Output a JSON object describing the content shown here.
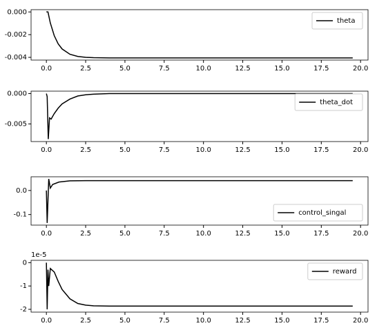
{
  "chart_data": [
    {
      "type": "line",
      "legend": "upper right",
      "xlim": [
        -0.975,
        20.475
      ],
      "ylim": [
        -0.00424,
        0.0002
      ],
      "xticks": [
        {
          "value": 0,
          "label": "0.0"
        },
        2.5,
        {
          "value": 5,
          "label": "5.0"
        },
        7.5,
        {
          "value": 10,
          "label": "10.0"
        },
        12.5,
        {
          "value": 15,
          "label": "15.0"
        },
        17.5,
        {
          "value": 20,
          "label": "20.0"
        }
      ],
      "yticks": [
        {
          "value": 0,
          "label": "0.000"
        },
        {
          "value": -0.002,
          "label": "-0.002"
        },
        {
          "value": -0.004,
          "label": "-0.004"
        }
      ],
      "series": [
        {
          "name": "theta",
          "color": "#000000",
          "x": [
            0,
            0.1,
            0.25,
            0.5,
            0.75,
            1,
            1.5,
            2,
            2.5,
            3,
            4,
            5,
            10,
            15,
            19.5
          ],
          "values": [
            0,
            0,
            -0.00097,
            -0.00209,
            -0.00281,
            -0.00326,
            -0.00373,
            -0.00392,
            -0.004,
            -0.00403,
            -0.00405,
            -0.00405,
            -0.00405,
            -0.00405,
            -0.00405
          ]
        }
      ]
    },
    {
      "type": "line",
      "legend": "upper right",
      "xlim": [
        -0.975,
        20.475
      ],
      "ylim": [
        -0.0079,
        0.0004
      ],
      "xticks": [
        {
          "value": 0,
          "label": "0.0"
        },
        2.5,
        {
          "value": 5,
          "label": "5.0"
        },
        7.5,
        {
          "value": 10,
          "label": "10.0"
        },
        12.5,
        {
          "value": 15,
          "label": "15.0"
        },
        17.5,
        {
          "value": 20,
          "label": "20.0"
        }
      ],
      "yticks": [
        {
          "value": 0,
          "label": "0.000"
        },
        {
          "value": -0.005,
          "label": "-0.005"
        }
      ],
      "series": [
        {
          "name": "theta_dot",
          "color": "#000000",
          "x": [
            0,
            0.05,
            0.12,
            0.2,
            0.3,
            0.5,
            0.75,
            1,
            1.5,
            2,
            2.5,
            3,
            4,
            5,
            10,
            15,
            19.5
          ],
          "values": [
            0,
            -0.0005,
            -0.0075,
            -0.004,
            -0.0042,
            -0.0033,
            -0.0024,
            -0.0017,
            -0.0009,
            -0.0004,
            -0.0002,
            -0.0001,
            0,
            0,
            0,
            0,
            0
          ]
        }
      ]
    },
    {
      "type": "line",
      "legend": "lower right",
      "xlim": [
        -0.975,
        20.475
      ],
      "ylim": [
        -0.144,
        0.057
      ],
      "xticks": [
        {
          "value": 0,
          "label": "0.0"
        },
        2.5,
        {
          "value": 5,
          "label": "5.0"
        },
        7.5,
        {
          "value": 10,
          "label": "10.0"
        },
        12.5,
        {
          "value": 15,
          "label": "15.0"
        },
        17.5,
        {
          "value": 20,
          "label": "20.0"
        }
      ],
      "yticks": [
        {
          "value": 0,
          "label": "0.0"
        },
        -0.1
      ],
      "series": [
        {
          "name": "control_singal",
          "color": "#000000",
          "x": [
            0,
            0.05,
            0.15,
            0.25,
            0.4,
            0.8,
            1.5,
            2.5,
            5,
            10,
            15,
            19.5
          ],
          "values": [
            0,
            -0.135,
            0.048,
            0.01,
            0.025,
            0.035,
            0.04,
            0.041,
            0.041,
            0.041,
            0.041,
            0.041
          ]
        }
      ]
    },
    {
      "type": "line",
      "legend": "upper right",
      "offset_label": "1e-5",
      "xlim": [
        -0.975,
        20.475
      ],
      "ylim": [
        -2.12,
        0.1
      ],
      "xticks": [
        {
          "value": 0,
          "label": "0.0"
        },
        2.5,
        {
          "value": 5,
          "label": "5.0"
        },
        7.5,
        {
          "value": 10,
          "label": "10.0"
        },
        12.5,
        {
          "value": 15,
          "label": "15.0"
        },
        17.5,
        {
          "value": 20,
          "label": "20.0"
        }
      ],
      "yticks": [
        0,
        -1,
        -2
      ],
      "series": [
        {
          "name": "reward",
          "color": "#000000",
          "x": [
            0,
            0.05,
            0.1,
            0.15,
            0.25,
            0.5,
            0.75,
            1,
            1.5,
            2,
            2.5,
            3,
            4,
            5,
            10,
            15,
            19.5
          ],
          "values": [
            0,
            -2.0,
            -0.3,
            -1.0,
            -0.25,
            -0.4,
            -0.8,
            -1.15,
            -1.55,
            -1.75,
            -1.82,
            -1.85,
            -1.86,
            -1.86,
            -1.86,
            -1.86,
            -1.86
          ]
        }
      ]
    }
  ]
}
